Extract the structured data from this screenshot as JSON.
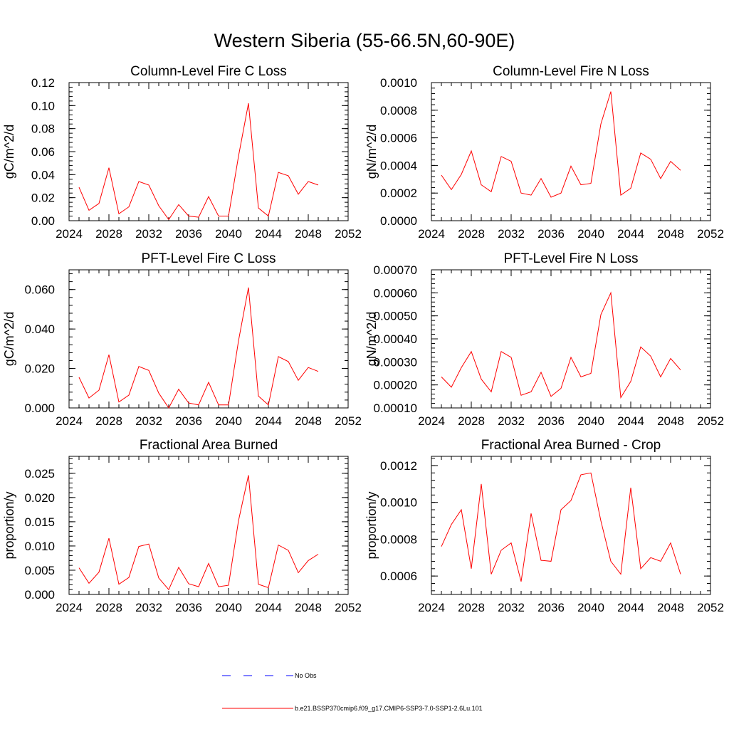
{
  "figure": {
    "title": "Western Siberia (55-66.5N,60-90E)"
  },
  "legend": {
    "entries": [
      {
        "label": "No Obs",
        "color": "#0000ff",
        "style": "dashed"
      },
      {
        "label": "b.e21.BSSP370cmip6.f09_g17.CMIP6-SSP3-7.0-SSP1-2.6Lu.101",
        "color": "#ff0000",
        "style": "solid"
      }
    ]
  },
  "chart_data": [
    {
      "type": "line",
      "title": "Column-Level Fire C Loss",
      "ylabel": "gC/m^2/d",
      "xlim": [
        2024,
        2052
      ],
      "ylim": [
        0,
        0.12
      ],
      "xticks": [
        "2024",
        "2028",
        "2032",
        "2036",
        "2040",
        "2044",
        "2048",
        "2052"
      ],
      "yticks": [
        "0.00",
        "0.02",
        "0.04",
        "0.06",
        "0.08",
        "0.10",
        "0.12"
      ],
      "x": [
        2025,
        2026,
        2027,
        2028,
        2029,
        2030,
        2031,
        2032,
        2033,
        2034,
        2035,
        2036,
        2037,
        2038,
        2039,
        2040,
        2041,
        2042,
        2043,
        2044,
        2045,
        2046,
        2047,
        2048,
        2049
      ],
      "series": [
        {
          "name": "b.e21.BSSP370cmip6.f09_g17.CMIP6-SSP3-7.0-SSP1-2.6Lu.101",
          "color": "#ff0000",
          "values": [
            0.029,
            0.009,
            0.015,
            0.046,
            0.006,
            0.012,
            0.034,
            0.031,
            0.013,
            0.001,
            0.014,
            0.004,
            0.003,
            0.021,
            0.004,
            0.004,
            0.056,
            0.102,
            0.011,
            0.004,
            0.042,
            0.039,
            0.023,
            0.034,
            0.031
          ]
        }
      ]
    },
    {
      "type": "line",
      "title": "Column-Level Fire N Loss",
      "ylabel": "gN/m^2/d",
      "xlim": [
        2024,
        2052
      ],
      "ylim": [
        0,
        0.001
      ],
      "xticks": [
        "2024",
        "2028",
        "2032",
        "2036",
        "2040",
        "2044",
        "2048",
        "2052"
      ],
      "yticks": [
        "0.0000",
        "0.0002",
        "0.0004",
        "0.0006",
        "0.0008",
        "0.0010"
      ],
      "x": [
        2025,
        2026,
        2027,
        2028,
        2029,
        2030,
        2031,
        2032,
        2033,
        2034,
        2035,
        2036,
        2037,
        2038,
        2039,
        2040,
        2041,
        2042,
        2043,
        2044,
        2045,
        2046,
        2047,
        2048,
        2049
      ],
      "series": [
        {
          "name": "b.e21.BSSP370cmip6.f09_g17.CMIP6-SSP3-7.0-SSP1-2.6Lu.101",
          "color": "#ff0000",
          "values": [
            0.00033,
            0.000225,
            0.000335,
            0.000505,
            0.00026,
            0.00021,
            0.000465,
            0.00043,
            0.0002,
            0.000185,
            0.000305,
            0.00017,
            0.0002,
            0.000395,
            0.00026,
            0.00027,
            0.0007,
            0.000935,
            0.000185,
            0.000235,
            0.00049,
            0.000445,
            0.000305,
            0.00043,
            0.000365
          ]
        }
      ]
    },
    {
      "type": "line",
      "title": "PFT-Level Fire C Loss",
      "ylabel": "gC/m^2/d",
      "xlim": [
        2024,
        2052
      ],
      "ylim": [
        0,
        0.07
      ],
      "xticks": [
        "2024",
        "2028",
        "2032",
        "2036",
        "2040",
        "2044",
        "2048",
        "2052"
      ],
      "yticks": [
        "0.000",
        "0.020",
        "0.040",
        "0.060"
      ],
      "ytick_values": [
        0,
        0.02,
        0.04,
        0.06
      ],
      "x": [
        2025,
        2026,
        2027,
        2028,
        2029,
        2030,
        2031,
        2032,
        2033,
        2034,
        2035,
        2036,
        2037,
        2038,
        2039,
        2040,
        2041,
        2042,
        2043,
        2044,
        2045,
        2046,
        2047,
        2048,
        2049
      ],
      "series": [
        {
          "name": "b.e21.BSSP370cmip6.f09_g17.CMIP6-SSP3-7.0-SSP1-2.6Lu.101",
          "color": "#ff0000",
          "values": [
            0.0155,
            0.005,
            0.009,
            0.027,
            0.003,
            0.0065,
            0.021,
            0.019,
            0.0075,
            0.0,
            0.0095,
            0.0025,
            0.0015,
            0.013,
            0.0015,
            0.0015,
            0.034,
            0.061,
            0.006,
            0.0015,
            0.026,
            0.0235,
            0.014,
            0.0205,
            0.0185
          ]
        }
      ]
    },
    {
      "type": "line",
      "title": "PFT-Level Fire N Loss",
      "ylabel": "gN/m^2/d",
      "xlim": [
        2024,
        2052
      ],
      "ylim": [
        0.0001,
        0.0007
      ],
      "xticks": [
        "2024",
        "2028",
        "2032",
        "2036",
        "2040",
        "2044",
        "2048",
        "2052"
      ],
      "yticks": [
        "0.00010",
        "0.00020",
        "0.00030",
        "0.00040",
        "0.00050",
        "0.00060",
        "0.00070"
      ],
      "x": [
        2025,
        2026,
        2027,
        2028,
        2029,
        2030,
        2031,
        2032,
        2033,
        2034,
        2035,
        2036,
        2037,
        2038,
        2039,
        2040,
        2041,
        2042,
        2043,
        2044,
        2045,
        2046,
        2047,
        2048,
        2049
      ],
      "series": [
        {
          "name": "b.e21.BSSP370cmip6.f09_g17.CMIP6-SSP3-7.0-SSP1-2.6Lu.101",
          "color": "#ff0000",
          "values": [
            0.000235,
            0.00019,
            0.000275,
            0.000345,
            0.000225,
            0.00017,
            0.000345,
            0.00032,
            0.000155,
            0.00017,
            0.000255,
            0.00015,
            0.000185,
            0.00032,
            0.000235,
            0.00025,
            0.000505,
            0.0006,
            0.000145,
            0.000215,
            0.000365,
            0.000325,
            0.000235,
            0.000315,
            0.000265
          ]
        }
      ]
    },
    {
      "type": "line",
      "title": "Fractional Area Burned",
      "ylabel": "proportion/y",
      "xlim": [
        2024,
        2052
      ],
      "ylim": [
        0,
        0.0285
      ],
      "xticks": [
        "2024",
        "2028",
        "2032",
        "2036",
        "2040",
        "2044",
        "2048",
        "2052"
      ],
      "yticks": [
        "0.000",
        "0.005",
        "0.010",
        "0.015",
        "0.020",
        "0.025"
      ],
      "x": [
        2025,
        2026,
        2027,
        2028,
        2029,
        2030,
        2031,
        2032,
        2033,
        2034,
        2035,
        2036,
        2037,
        2038,
        2039,
        2040,
        2041,
        2042,
        2043,
        2044,
        2045,
        2046,
        2047,
        2048,
        2049
      ],
      "series": [
        {
          "name": "b.e21.BSSP370cmip6.f09_g17.CMIP6-SSP3-7.0-SSP1-2.6Lu.101",
          "color": "#ff0000",
          "values": [
            0.0055,
            0.0023,
            0.0046,
            0.0116,
            0.0021,
            0.0035,
            0.0099,
            0.0104,
            0.0034,
            0.001,
            0.0056,
            0.0022,
            0.0016,
            0.0064,
            0.0016,
            0.0019,
            0.0152,
            0.0246,
            0.0021,
            0.0014,
            0.0102,
            0.0091,
            0.0045,
            0.007,
            0.0083
          ]
        }
      ]
    },
    {
      "type": "line",
      "title": "Fractional Area Burned - Crop",
      "ylabel": "proportion/y",
      "xlim": [
        2024,
        2052
      ],
      "ylim": [
        0.0005,
        0.00125
      ],
      "xticks": [
        "2024",
        "2028",
        "2032",
        "2036",
        "2040",
        "2044",
        "2048",
        "2052"
      ],
      "yticks": [
        "0.0006",
        "0.0008",
        "0.0010",
        "0.0012"
      ],
      "ytick_values": [
        0.0006,
        0.0008,
        0.001,
        0.0012
      ],
      "x": [
        2025,
        2026,
        2027,
        2028,
        2029,
        2030,
        2031,
        2032,
        2033,
        2034,
        2035,
        2036,
        2037,
        2038,
        2039,
        2040,
        2041,
        2042,
        2043,
        2044,
        2045,
        2046,
        2047,
        2048,
        2049
      ],
      "series": [
        {
          "name": "b.e21.BSSP370cmip6.f09_g17.CMIP6-SSP3-7.0-SSP1-2.6Lu.101",
          "color": "#ff0000",
          "values": [
            0.00076,
            0.00088,
            0.00096,
            0.00064,
            0.0011,
            0.00061,
            0.00074,
            0.00078,
            0.00057,
            0.00094,
            0.000685,
            0.00068,
            0.00096,
            0.00101,
            0.00115,
            0.00116,
            0.0009,
            0.00068,
            0.00061,
            0.00108,
            0.00064,
            0.0007,
            0.00068,
            0.00078,
            0.00061
          ]
        }
      ]
    }
  ]
}
